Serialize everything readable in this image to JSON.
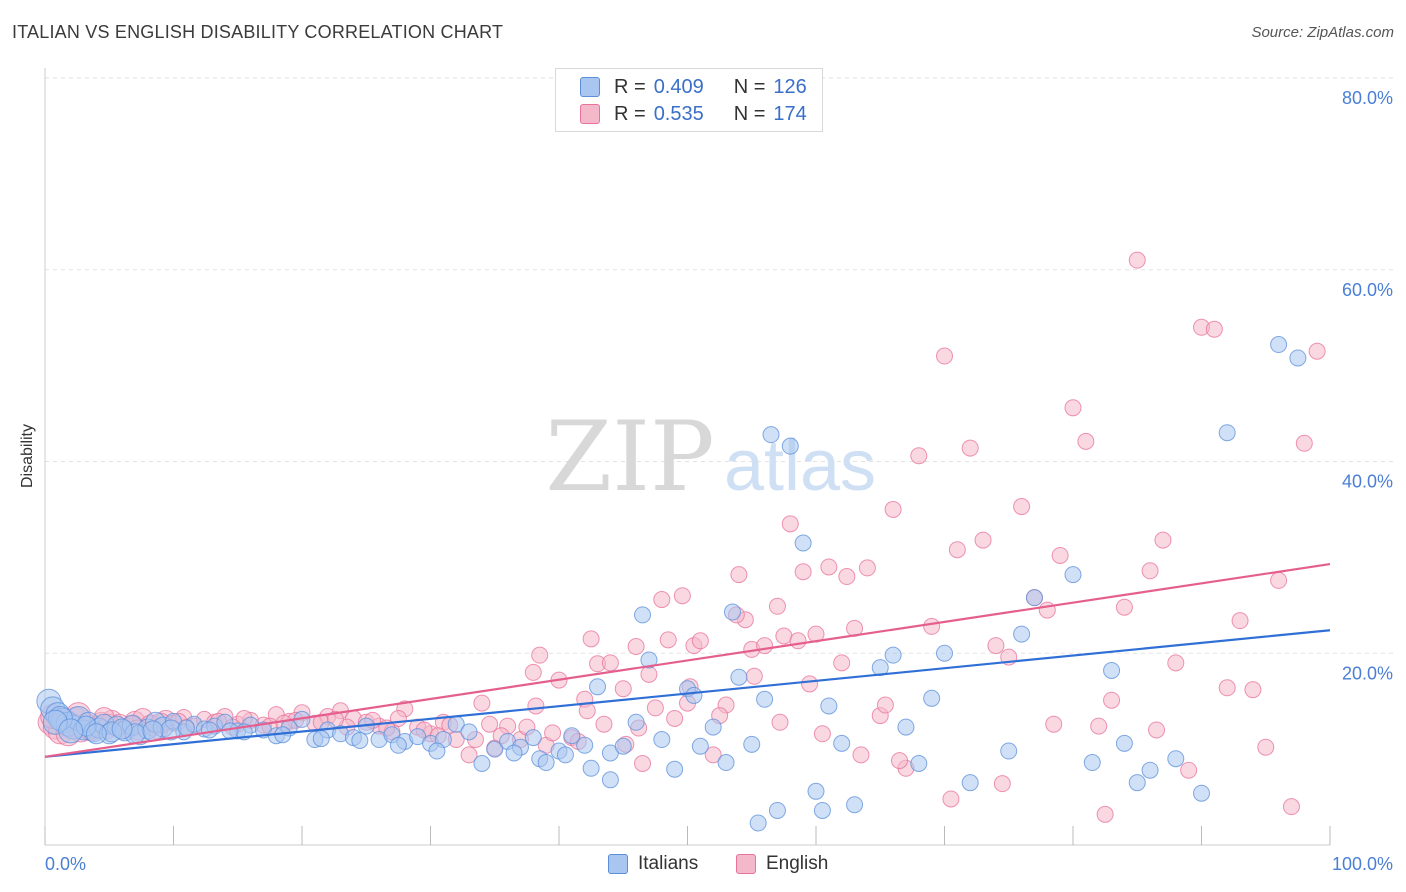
{
  "header": {
    "title": "ITALIAN VS ENGLISH DISABILITY CORRELATION CHART",
    "source": "Source: ZipAtlas.com"
  },
  "legend": {
    "italians": {
      "r_label": "R =",
      "r_value": "0.409",
      "n_label": "N =",
      "n_value": "126"
    },
    "english": {
      "r_label": "R =",
      "r_value": "0.535",
      "n_label": "N =",
      "n_value": "174"
    }
  },
  "bottom_legend": {
    "italians": "Italians",
    "english": "English"
  },
  "watermark": {
    "zip": "ZIP",
    "atlas": "atlas"
  },
  "colors": {
    "italians": "#5b8fd9",
    "italians_fill": "#a9c6f0",
    "english": "#e8729b",
    "english_fill": "#f4b8cb",
    "axis_text": "#4a7fd4"
  },
  "chart_data": {
    "type": "scatter",
    "title": "ITALIAN VS ENGLISH DISABILITY CORRELATION CHART",
    "xlabel": "",
    "ylabel": "Disability",
    "xlim": [
      0,
      100
    ],
    "ylim": [
      0,
      80
    ],
    "x_tick_labels": [
      "0.0%",
      "100.0%"
    ],
    "y_tick_labels": [
      "20.0%",
      "40.0%",
      "60.0%",
      "80.0%"
    ],
    "y_ticks": [
      20,
      40,
      60,
      80
    ],
    "series": [
      {
        "name": "Italians",
        "trendline": {
          "x": [
            0,
            100
          ],
          "y": [
            9.2,
            22.4
          ]
        },
        "points": [
          [
            0.3,
            15.0
          ],
          [
            0.6,
            14.2
          ],
          [
            1.0,
            13.6
          ],
          [
            1.4,
            13.0
          ],
          [
            1.8,
            12.6
          ],
          [
            2.2,
            12.3
          ],
          [
            2.6,
            13.2
          ],
          [
            3.0,
            12.0
          ],
          [
            3.4,
            12.8
          ],
          [
            3.8,
            11.8
          ],
          [
            4.2,
            12.2
          ],
          [
            4.6,
            12.6
          ],
          [
            5.0,
            11.6
          ],
          [
            5.6,
            12.4
          ],
          [
            6.2,
            11.9
          ],
          [
            6.8,
            12.5
          ],
          [
            7.4,
            11.5
          ],
          [
            8.0,
            12.1
          ],
          [
            8.6,
            12.8
          ],
          [
            9.2,
            12.3
          ],
          [
            10.0,
            12.9
          ],
          [
            10.8,
            11.8
          ],
          [
            11.6,
            12.6
          ],
          [
            12.4,
            12.1
          ],
          [
            13.2,
            12.4
          ],
          [
            14.0,
            12.8
          ],
          [
            15.0,
            11.9
          ],
          [
            16.0,
            12.5
          ],
          [
            17.0,
            12.0
          ],
          [
            18.0,
            11.4
          ],
          [
            19.0,
            12.2
          ],
          [
            20.0,
            13.1
          ],
          [
            21.0,
            11.0
          ],
          [
            22.0,
            12.0
          ],
          [
            23.0,
            11.6
          ],
          [
            24.0,
            11.2
          ],
          [
            25.0,
            12.4
          ],
          [
            26.0,
            11.0
          ],
          [
            27.0,
            11.5
          ],
          [
            28.0,
            10.8
          ],
          [
            29.0,
            11.3
          ],
          [
            30.0,
            10.6
          ],
          [
            31.0,
            11.0
          ],
          [
            32.0,
            12.6
          ],
          [
            33.0,
            11.8
          ],
          [
            34.0,
            8.5
          ],
          [
            35.0,
            10.0
          ],
          [
            36.0,
            10.8
          ],
          [
            37.0,
            10.2
          ],
          [
            38.0,
            11.2
          ],
          [
            38.5,
            9.0
          ],
          [
            39.0,
            8.6
          ],
          [
            40.0,
            9.8
          ],
          [
            41.0,
            11.4
          ],
          [
            42.0,
            10.4
          ],
          [
            43.0,
            16.5
          ],
          [
            44.0,
            9.6
          ],
          [
            45.0,
            10.3
          ],
          [
            46.0,
            12.8
          ],
          [
            47.0,
            19.3
          ],
          [
            46.5,
            24.0
          ],
          [
            48.0,
            11.0
          ],
          [
            49.0,
            7.9
          ],
          [
            50.0,
            16.3
          ],
          [
            50.5,
            15.6
          ],
          [
            51.0,
            10.3
          ],
          [
            52.0,
            12.3
          ],
          [
            53.0,
            8.6
          ],
          [
            53.5,
            24.3
          ],
          [
            54.0,
            17.5
          ],
          [
            55.0,
            10.5
          ],
          [
            56.0,
            15.2
          ],
          [
            56.5,
            42.8
          ],
          [
            57.0,
            3.6
          ],
          [
            58.0,
            41.6
          ],
          [
            59.0,
            31.5
          ],
          [
            60.0,
            5.6
          ],
          [
            61.0,
            14.5
          ],
          [
            62.0,
            10.6
          ],
          [
            63.0,
            4.2
          ],
          [
            65.0,
            18.5
          ],
          [
            66.0,
            19.8
          ],
          [
            67.0,
            12.3
          ],
          [
            68.0,
            8.5
          ],
          [
            69.0,
            15.3
          ],
          [
            70.0,
            20.0
          ],
          [
            72.0,
            6.5
          ],
          [
            75.0,
            9.8
          ],
          [
            76.0,
            22.0
          ],
          [
            77.0,
            25.8
          ],
          [
            80.0,
            28.2
          ],
          [
            81.5,
            8.6
          ],
          [
            83.0,
            18.2
          ],
          [
            84.0,
            10.6
          ],
          [
            85.0,
            6.5
          ],
          [
            86.0,
            7.8
          ],
          [
            88.0,
            9.0
          ],
          [
            90.0,
            5.4
          ],
          [
            92.0,
            43.0
          ],
          [
            96.0,
            52.2
          ],
          [
            97.5,
            50.8
          ],
          [
            55.5,
            2.3
          ],
          [
            60.5,
            3.6
          ],
          [
            44.0,
            6.8
          ],
          [
            42.5,
            8.0
          ],
          [
            40.5,
            9.4
          ],
          [
            36.5,
            9.6
          ],
          [
            30.5,
            9.8
          ],
          [
            27.5,
            10.4
          ],
          [
            24.5,
            10.9
          ],
          [
            21.5,
            11.1
          ],
          [
            18.5,
            11.5
          ],
          [
            15.5,
            11.8
          ],
          [
            12.8,
            12.0
          ],
          [
            9.8,
            12.0
          ],
          [
            7.0,
            11.6
          ],
          [
            5.2,
            11.8
          ],
          [
            3.2,
            12.4
          ],
          [
            1.2,
            13.2
          ],
          [
            0.8,
            12.8
          ],
          [
            2.0,
            11.9
          ],
          [
            4.0,
            11.6
          ],
          [
            6.0,
            12.1
          ],
          [
            8.4,
            11.9
          ],
          [
            11.0,
            12.2
          ],
          [
            14.4,
            11.9
          ]
        ]
      },
      {
        "name": "English",
        "trendline": {
          "x": [
            0,
            100
          ],
          "y": [
            9.2,
            29.3
          ]
        },
        "points": [
          [
            0.4,
            12.8
          ],
          [
            0.8,
            12.3
          ],
          [
            1.2,
            11.8
          ],
          [
            1.6,
            12.9
          ],
          [
            2.0,
            12.5
          ],
          [
            2.4,
            13.1
          ],
          [
            2.8,
            12.0
          ],
          [
            3.2,
            12.7
          ],
          [
            3.6,
            11.9
          ],
          [
            4.0,
            12.4
          ],
          [
            4.4,
            12.8
          ],
          [
            4.8,
            12.1
          ],
          [
            5.2,
            13.0
          ],
          [
            5.8,
            12.6
          ],
          [
            6.4,
            12.2
          ],
          [
            7.0,
            12.9
          ],
          [
            7.6,
            13.2
          ],
          [
            8.2,
            12.5
          ],
          [
            8.8,
            12.1
          ],
          [
            9.4,
            13.0
          ],
          [
            10.0,
            12.7
          ],
          [
            10.8,
            13.3
          ],
          [
            11.6,
            12.4
          ],
          [
            12.4,
            13.1
          ],
          [
            13.2,
            12.8
          ],
          [
            14.0,
            13.4
          ],
          [
            15.0,
            12.6
          ],
          [
            16.0,
            13.0
          ],
          [
            17.0,
            12.5
          ],
          [
            18.0,
            13.6
          ],
          [
            19.0,
            12.9
          ],
          [
            20.0,
            13.8
          ],
          [
            21.0,
            12.7
          ],
          [
            22.0,
            13.4
          ],
          [
            23.0,
            14.0
          ],
          [
            24.0,
            13.2
          ],
          [
            25.0,
            12.8
          ],
          [
            26.0,
            12.4
          ],
          [
            27.0,
            11.8
          ],
          [
            28.0,
            14.2
          ],
          [
            29.0,
            12.3
          ],
          [
            30.0,
            11.6
          ],
          [
            31.0,
            12.8
          ],
          [
            32.0,
            11.0
          ],
          [
            33.0,
            9.4
          ],
          [
            34.0,
            14.8
          ],
          [
            35.0,
            10.1
          ],
          [
            36.0,
            12.4
          ],
          [
            37.0,
            11.0
          ],
          [
            38.0,
            18.0
          ],
          [
            38.5,
            19.8
          ],
          [
            39.0,
            10.4
          ],
          [
            40.0,
            17.2
          ],
          [
            41.0,
            11.2
          ],
          [
            42.0,
            15.2
          ],
          [
            42.5,
            21.5
          ],
          [
            43.0,
            18.9
          ],
          [
            44.0,
            19.0
          ],
          [
            45.0,
            16.3
          ],
          [
            46.0,
            20.7
          ],
          [
            46.5,
            8.5
          ],
          [
            47.0,
            17.8
          ],
          [
            48.0,
            25.6
          ],
          [
            48.5,
            21.4
          ],
          [
            49.0,
            13.2
          ],
          [
            50.0,
            14.8
          ],
          [
            50.5,
            20.8
          ],
          [
            51.0,
            21.3
          ],
          [
            52.0,
            9.4
          ],
          [
            53.0,
            14.6
          ],
          [
            54.0,
            28.2
          ],
          [
            54.5,
            23.5
          ],
          [
            55.0,
            20.4
          ],
          [
            56.0,
            20.8
          ],
          [
            57.0,
            24.9
          ],
          [
            57.5,
            21.8
          ],
          [
            58.0,
            33.5
          ],
          [
            59.0,
            28.5
          ],
          [
            59.5,
            16.8
          ],
          [
            60.0,
            22.0
          ],
          [
            61.0,
            29.0
          ],
          [
            62.0,
            19.0
          ],
          [
            63.0,
            22.6
          ],
          [
            64.0,
            28.9
          ],
          [
            65.0,
            13.5
          ],
          [
            66.0,
            35.0
          ],
          [
            67.0,
            8.0
          ],
          [
            68.0,
            40.6
          ],
          [
            69.0,
            22.8
          ],
          [
            70.0,
            51.0
          ],
          [
            71.0,
            30.8
          ],
          [
            72.0,
            41.4
          ],
          [
            73.0,
            31.8
          ],
          [
            74.0,
            20.8
          ],
          [
            75.0,
            19.6
          ],
          [
            76.0,
            35.3
          ],
          [
            77.0,
            25.8
          ],
          [
            78.0,
            24.5
          ],
          [
            79.0,
            30.2
          ],
          [
            80.0,
            45.6
          ],
          [
            81.0,
            42.1
          ],
          [
            82.0,
            12.4
          ],
          [
            83.0,
            15.1
          ],
          [
            84.0,
            24.8
          ],
          [
            85.0,
            61.0
          ],
          [
            86.0,
            28.6
          ],
          [
            87.0,
            31.8
          ],
          [
            88.0,
            19.0
          ],
          [
            89.0,
            7.8
          ],
          [
            90.0,
            54.0
          ],
          [
            91.0,
            53.8
          ],
          [
            92.0,
            16.4
          ],
          [
            93.0,
            23.4
          ],
          [
            94.0,
            16.2
          ],
          [
            95.0,
            10.2
          ],
          [
            96.0,
            27.6
          ],
          [
            97.0,
            4.0
          ],
          [
            98.0,
            41.9
          ],
          [
            99.0,
            51.5
          ],
          [
            70.5,
            4.8
          ],
          [
            74.5,
            6.4
          ],
          [
            78.5,
            12.6
          ],
          [
            82.5,
            3.2
          ],
          [
            86.5,
            12.0
          ],
          [
            66.5,
            8.8
          ],
          [
            63.5,
            9.4
          ],
          [
            60.5,
            11.6
          ],
          [
            57.2,
            12.8
          ],
          [
            55.2,
            17.6
          ],
          [
            52.5,
            13.5
          ],
          [
            50.2,
            16.5
          ],
          [
            47.5,
            14.3
          ],
          [
            45.2,
            10.5
          ],
          [
            43.5,
            12.6
          ],
          [
            41.5,
            10.8
          ],
          [
            39.5,
            11.7
          ],
          [
            37.5,
            12.3
          ],
          [
            35.5,
            11.4
          ],
          [
            33.5,
            11.0
          ],
          [
            31.5,
            12.5
          ],
          [
            29.5,
            12.0
          ],
          [
            27.5,
            13.2
          ],
          [
            25.5,
            13.0
          ],
          [
            23.5,
            12.3
          ],
          [
            21.5,
            12.8
          ],
          [
            19.5,
            13.0
          ],
          [
            17.5,
            12.4
          ],
          [
            15.5,
            13.2
          ],
          [
            13.5,
            12.9
          ],
          [
            11.0,
            12.3
          ],
          [
            9.0,
            12.7
          ],
          [
            6.8,
            12.4
          ],
          [
            5.0,
            12.6
          ],
          [
            3.4,
            12.0
          ],
          [
            1.8,
            11.6
          ],
          [
            0.6,
            13.4
          ],
          [
            2.6,
            13.6
          ],
          [
            4.6,
            13.3
          ],
          [
            7.2,
            12.0
          ],
          [
            10.4,
            12.9
          ],
          [
            14.6,
            12.3
          ],
          [
            18.6,
            12.7
          ],
          [
            22.6,
            13.1
          ],
          [
            26.6,
            12.2
          ],
          [
            30.6,
            11.4
          ],
          [
            34.6,
            12.6
          ],
          [
            38.2,
            14.5
          ],
          [
            42.2,
            14.0
          ],
          [
            46.2,
            12.2
          ],
          [
            49.6,
            26.0
          ],
          [
            53.8,
            24.0
          ],
          [
            58.6,
            21.3
          ],
          [
            62.4,
            28.0
          ],
          [
            65.4,
            14.6
          ]
        ]
      }
    ]
  }
}
